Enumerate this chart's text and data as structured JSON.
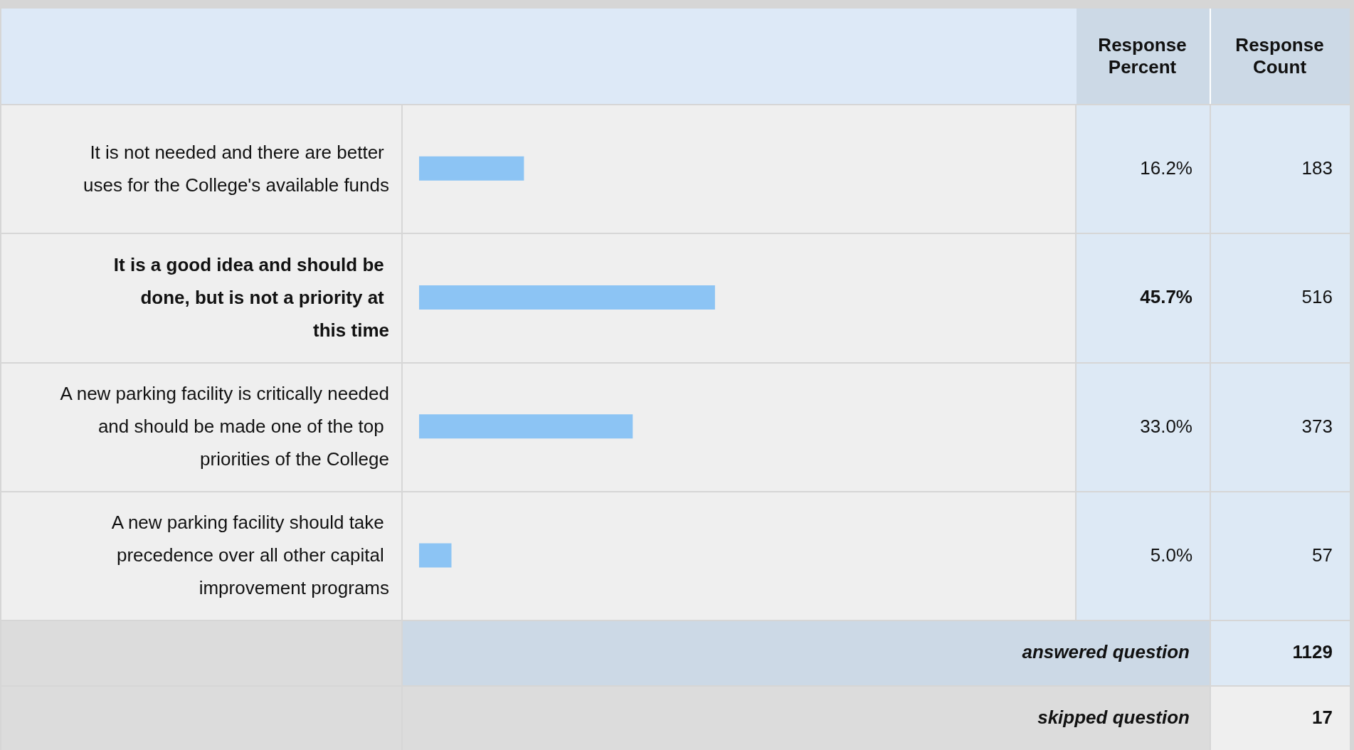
{
  "chart_data": {
    "type": "bar",
    "orientation": "horizontal",
    "categories": [
      "It is not needed and there are better uses for the College's available funds",
      "It is a good idea and should be done, but is not a priority at this time",
      "A new parking facility is critically needed and should be made one of the top priorities of the College",
      "A new parking facility should take precedence over all other capital improvement programs"
    ],
    "values": [
      16.2,
      45.7,
      33.0,
      5.0
    ],
    "color": "#8cc4f4",
    "value_labels": [
      "16.2%",
      "45.7%",
      "33.0%",
      "5.0%"
    ],
    "tick_labels": "y",
    "grid": false,
    "annotations": [
      "Response Percent",
      "Response Count",
      "183",
      "516",
      "373",
      "57",
      "answered question",
      "1129",
      "skipped question",
      "17"
    ]
  }
}
